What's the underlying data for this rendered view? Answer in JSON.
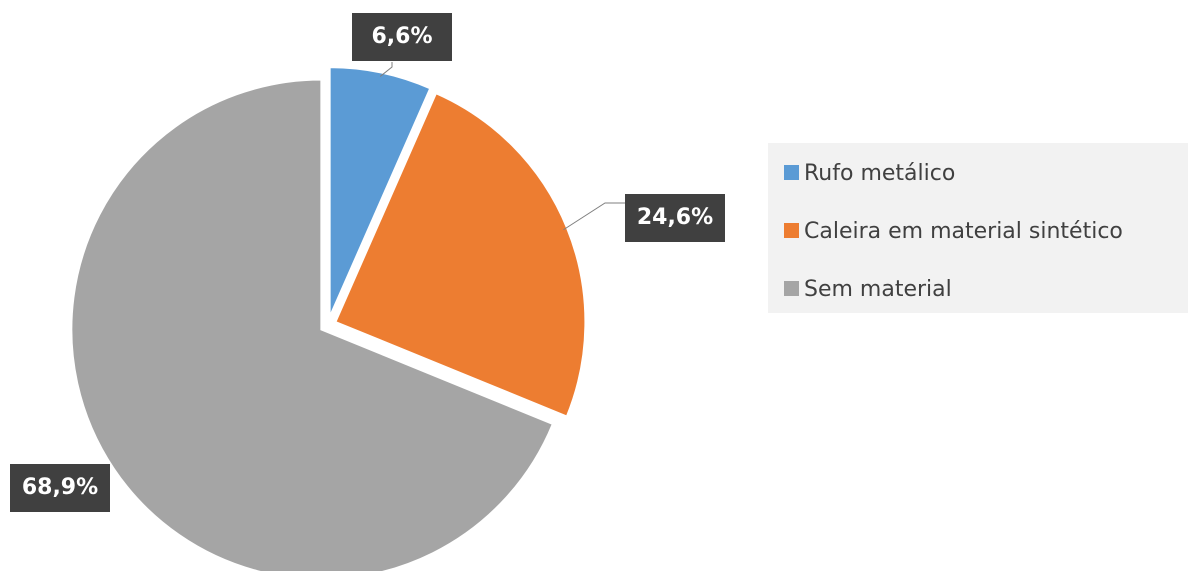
{
  "chart_data": {
    "type": "pie",
    "categories": [
      "Rufo metálico",
      "Caleira em material sintético",
      "Sem material"
    ],
    "values": [
      6.6,
      24.6,
      68.9
    ],
    "value_labels": [
      "6,6%",
      "24,6%",
      "68,9%"
    ],
    "colors": [
      "#5b9bd5",
      "#ed7d31",
      "#a5a5a5"
    ],
    "legend": "right"
  }
}
